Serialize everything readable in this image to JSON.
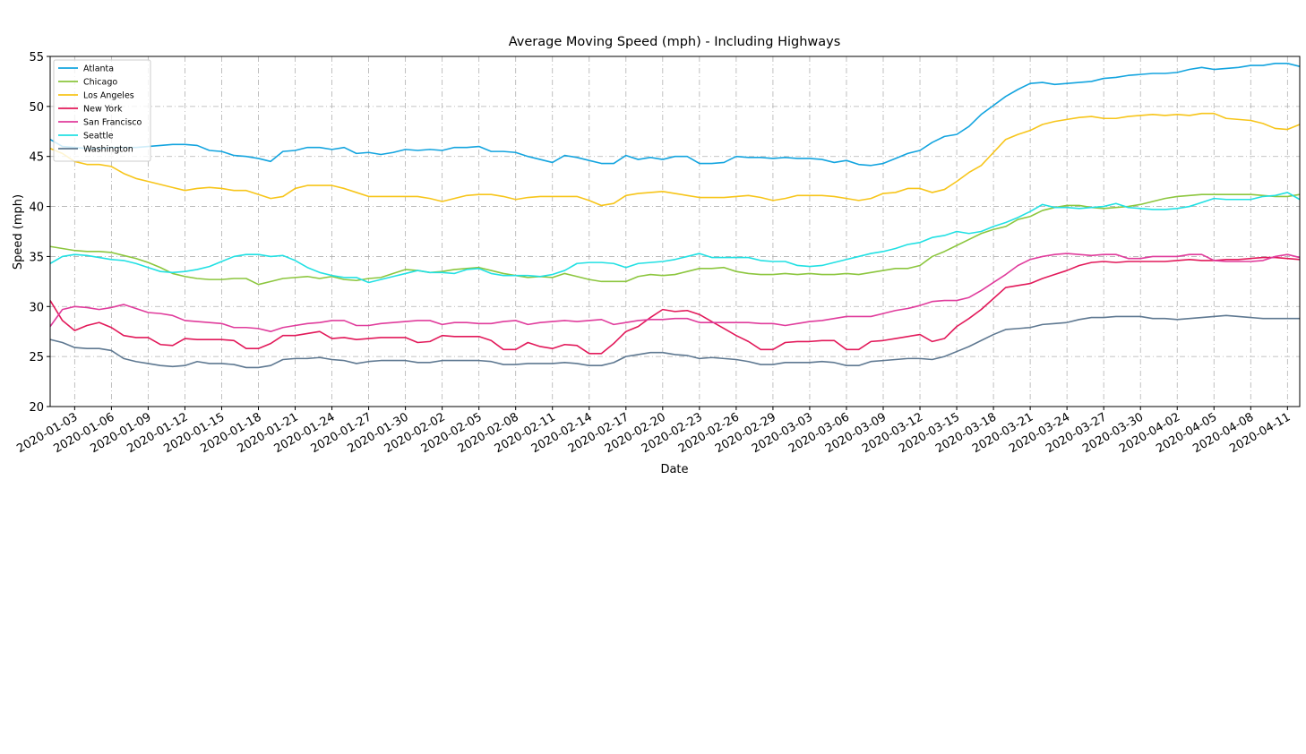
{
  "chart_data": {
    "type": "line",
    "title": "Average Moving Speed (mph) - Including Highways",
    "x_label": "Date",
    "y_label": "Speed (mph)",
    "x": [
      "2020-01-01",
      "2020-01-02",
      "2020-01-03",
      "2020-01-04",
      "2020-01-05",
      "2020-01-06",
      "2020-01-07",
      "2020-01-08",
      "2020-01-09",
      "2020-01-10",
      "2020-01-11",
      "2020-01-12",
      "2020-01-13",
      "2020-01-14",
      "2020-01-15",
      "2020-01-16",
      "2020-01-17",
      "2020-01-18",
      "2020-01-19",
      "2020-01-20",
      "2020-01-21",
      "2020-01-22",
      "2020-01-23",
      "2020-01-24",
      "2020-01-25",
      "2020-01-26",
      "2020-01-27",
      "2020-01-28",
      "2020-01-29",
      "2020-01-30",
      "2020-01-31",
      "2020-02-01",
      "2020-02-02",
      "2020-02-03",
      "2020-02-04",
      "2020-02-05",
      "2020-02-06",
      "2020-02-07",
      "2020-02-08",
      "2020-02-09",
      "2020-02-10",
      "2020-02-11",
      "2020-02-12",
      "2020-02-13",
      "2020-02-14",
      "2020-02-15",
      "2020-02-16",
      "2020-02-17",
      "2020-02-18",
      "2020-02-19",
      "2020-02-20",
      "2020-02-21",
      "2020-02-22",
      "2020-02-23",
      "2020-02-24",
      "2020-02-25",
      "2020-02-26",
      "2020-02-27",
      "2020-02-28",
      "2020-02-29",
      "2020-03-01",
      "2020-03-02",
      "2020-03-03",
      "2020-03-04",
      "2020-03-05",
      "2020-03-06",
      "2020-03-07",
      "2020-03-08",
      "2020-03-09",
      "2020-03-10",
      "2020-03-11",
      "2020-03-12",
      "2020-03-13",
      "2020-03-14",
      "2020-03-15",
      "2020-03-16",
      "2020-03-17",
      "2020-03-18",
      "2020-03-19",
      "2020-03-20",
      "2020-03-21",
      "2020-03-22",
      "2020-03-23",
      "2020-03-24",
      "2020-03-25",
      "2020-03-26",
      "2020-03-27",
      "2020-03-28",
      "2020-03-29",
      "2020-03-30",
      "2020-03-31",
      "2020-04-01",
      "2020-04-02",
      "2020-04-03",
      "2020-04-04",
      "2020-04-05",
      "2020-04-06",
      "2020-04-07",
      "2020-04-08",
      "2020-04-09",
      "2020-04-10",
      "2020-04-11",
      "2020-04-12"
    ],
    "xlim": [
      "2020-01-01",
      "2020-04-12"
    ],
    "xticks": [
      "2020-01-03",
      "2020-01-06",
      "2020-01-09",
      "2020-01-12",
      "2020-01-15",
      "2020-01-18",
      "2020-01-21",
      "2020-01-24",
      "2020-01-27",
      "2020-01-30",
      "2020-02-02",
      "2020-02-05",
      "2020-02-08",
      "2020-02-11",
      "2020-02-14",
      "2020-02-17",
      "2020-02-20",
      "2020-02-23",
      "2020-02-26",
      "2020-02-29",
      "2020-03-03",
      "2020-03-06",
      "2020-03-09",
      "2020-03-12",
      "2020-03-15",
      "2020-03-18",
      "2020-03-21",
      "2020-03-24",
      "2020-03-27",
      "2020-03-30",
      "2020-04-02",
      "2020-04-05",
      "2020-04-08",
      "2020-04-11"
    ],
    "ylim": [
      20,
      55
    ],
    "yticks": [
      20,
      25,
      30,
      35,
      40,
      45,
      50,
      55
    ],
    "grid": true,
    "legend": "upper-left",
    "series": [
      {
        "name": "Atlanta",
        "color": "#13a4df",
        "values": [
          46.7,
          46.0,
          45.9,
          45.8,
          45.8,
          45.9,
          45.9,
          45.9,
          46.0,
          46.1,
          46.2,
          46.2,
          46.1,
          45.6,
          45.5,
          45.1,
          45.0,
          44.8,
          44.5,
          45.5,
          45.6,
          45.9,
          45.9,
          45.7,
          45.9,
          45.3,
          45.4,
          45.2,
          45.4,
          45.7,
          45.6,
          45.7,
          45.6,
          45.9,
          45.9,
          46.0,
          45.5,
          45.5,
          45.4,
          45.0,
          44.7,
          44.4,
          45.1,
          44.9,
          44.6,
          44.3,
          44.3,
          45.1,
          44.7,
          44.9,
          44.7,
          45.0,
          45.0,
          44.3,
          44.3,
          44.4,
          45.0,
          44.9,
          44.9,
          44.8,
          44.9,
          44.8,
          44.8,
          44.7,
          44.4,
          44.6,
          44.2,
          44.1,
          44.3,
          44.8,
          45.3,
          45.6,
          46.4,
          47.0,
          47.2,
          48.0,
          49.2,
          50.1,
          51.0,
          51.7,
          52.3,
          52.4,
          52.2,
          52.3,
          52.4,
          52.5,
          52.8,
          52.9,
          53.1,
          53.2,
          53.3,
          53.3,
          53.4,
          53.7,
          53.9,
          53.7,
          53.8,
          53.9,
          54.1,
          54.1,
          54.3,
          54.3,
          54.0
        ]
      },
      {
        "name": "Chicago",
        "color": "#8cc63e",
        "values": [
          36.0,
          35.8,
          35.6,
          35.5,
          35.5,
          35.4,
          35.1,
          34.8,
          34.4,
          33.9,
          33.3,
          33.0,
          32.8,
          32.7,
          32.7,
          32.8,
          32.8,
          32.2,
          32.5,
          32.8,
          32.9,
          33.0,
          32.8,
          33.0,
          32.7,
          32.6,
          32.8,
          32.9,
          33.3,
          33.7,
          33.6,
          33.4,
          33.5,
          33.7,
          33.8,
          33.9,
          33.6,
          33.3,
          33.1,
          32.9,
          33.0,
          32.9,
          33.3,
          33.0,
          32.7,
          32.5,
          32.5,
          32.5,
          33.0,
          33.2,
          33.1,
          33.2,
          33.5,
          33.8,
          33.8,
          33.9,
          33.5,
          33.3,
          33.2,
          33.2,
          33.3,
          33.2,
          33.3,
          33.2,
          33.2,
          33.3,
          33.2,
          33.4,
          33.6,
          33.8,
          33.8,
          34.1,
          35.0,
          35.5,
          36.1,
          36.7,
          37.3,
          37.7,
          38.0,
          38.7,
          39.0,
          39.6,
          39.9,
          40.1,
          40.1,
          39.9,
          39.8,
          39.9,
          40.0,
          40.2,
          40.5,
          40.8,
          41.0,
          41.1,
          41.2,
          41.2,
          41.2,
          41.2,
          41.2,
          41.1,
          41.0,
          41.0,
          41.2
        ]
      },
      {
        "name": "Los Angeles",
        "color": "#f7c51a",
        "values": [
          45.8,
          45.3,
          44.5,
          44.2,
          44.2,
          44.0,
          43.3,
          42.8,
          42.5,
          42.2,
          41.9,
          41.6,
          41.8,
          41.9,
          41.8,
          41.6,
          41.6,
          41.2,
          40.8,
          41.0,
          41.8,
          42.1,
          42.1,
          42.1,
          41.8,
          41.4,
          41.0,
          41.0,
          41.0,
          41.0,
          41.0,
          40.8,
          40.5,
          40.8,
          41.1,
          41.2,
          41.2,
          41.0,
          40.7,
          40.9,
          41.0,
          41.0,
          41.0,
          41.0,
          40.6,
          40.1,
          40.3,
          41.1,
          41.3,
          41.4,
          41.5,
          41.3,
          41.1,
          40.9,
          40.9,
          40.9,
          41.0,
          41.1,
          40.9,
          40.6,
          40.8,
          41.1,
          41.1,
          41.1,
          41.0,
          40.8,
          40.6,
          40.8,
          41.3,
          41.4,
          41.8,
          41.8,
          41.4,
          41.7,
          42.5,
          43.4,
          44.1,
          45.4,
          46.7,
          47.2,
          47.6,
          48.2,
          48.5,
          48.7,
          48.9,
          49.0,
          48.8,
          48.8,
          49.0,
          49.1,
          49.2,
          49.1,
          49.2,
          49.1,
          49.3,
          49.3,
          48.8,
          48.7,
          48.6,
          48.3,
          47.8,
          47.7,
          48.2
        ]
      },
      {
        "name": "New York",
        "color": "#e2195a",
        "values": [
          30.6,
          28.6,
          27.6,
          28.1,
          28.4,
          27.9,
          27.1,
          26.9,
          26.9,
          26.2,
          26.1,
          26.8,
          26.7,
          26.7,
          26.7,
          26.6,
          25.8,
          25.8,
          26.3,
          27.1,
          27.1,
          27.3,
          27.5,
          26.8,
          26.9,
          26.7,
          26.8,
          26.9,
          26.9,
          26.9,
          26.4,
          26.5,
          27.1,
          27.0,
          27.0,
          27.0,
          26.6,
          25.7,
          25.7,
          26.4,
          26.0,
          25.8,
          26.2,
          26.1,
          25.3,
          25.3,
          26.3,
          27.5,
          28.0,
          28.9,
          29.7,
          29.5,
          29.6,
          29.2,
          28.5,
          27.8,
          27.1,
          26.5,
          25.7,
          25.7,
          26.4,
          26.5,
          26.5,
          26.6,
          26.6,
          25.7,
          25.7,
          26.5,
          26.6,
          26.8,
          27.0,
          27.2,
          26.5,
          26.8,
          28.0,
          28.8,
          29.7,
          30.8,
          31.9,
          32.1,
          32.3,
          32.8,
          33.2,
          33.6,
          34.1,
          34.4,
          34.5,
          34.4,
          34.5,
          34.5,
          34.5,
          34.5,
          34.6,
          34.7,
          34.6,
          34.6,
          34.7,
          34.7,
          34.8,
          34.9,
          34.9,
          34.8,
          34.7
        ]
      },
      {
        "name": "San Francisco",
        "color": "#e03c9c",
        "values": [
          28.0,
          29.7,
          30.0,
          29.9,
          29.7,
          29.9,
          30.2,
          29.8,
          29.4,
          29.3,
          29.1,
          28.6,
          28.5,
          28.4,
          28.3,
          27.9,
          27.9,
          27.8,
          27.5,
          27.9,
          28.1,
          28.3,
          28.4,
          28.6,
          28.6,
          28.1,
          28.1,
          28.3,
          28.4,
          28.5,
          28.6,
          28.6,
          28.2,
          28.4,
          28.4,
          28.3,
          28.3,
          28.5,
          28.6,
          28.2,
          28.4,
          28.5,
          28.6,
          28.5,
          28.6,
          28.7,
          28.2,
          28.4,
          28.6,
          28.7,
          28.7,
          28.8,
          28.8,
          28.4,
          28.4,
          28.4,
          28.4,
          28.4,
          28.3,
          28.3,
          28.1,
          28.3,
          28.5,
          28.6,
          28.8,
          29.0,
          29.0,
          29.0,
          29.3,
          29.6,
          29.8,
          30.1,
          30.5,
          30.6,
          30.6,
          30.9,
          31.6,
          32.4,
          33.2,
          34.1,
          34.7,
          35.0,
          35.2,
          35.3,
          35.2,
          35.1,
          35.2,
          35.2,
          34.8,
          34.8,
          35.0,
          35.0,
          35.0,
          35.2,
          35.2,
          34.6,
          34.5,
          34.5,
          34.5,
          34.6,
          35.0,
          35.2,
          34.9
        ]
      },
      {
        "name": "Seattle",
        "color": "#22e0e3",
        "values": [
          34.3,
          35.0,
          35.2,
          35.1,
          34.9,
          34.7,
          34.6,
          34.3,
          33.9,
          33.5,
          33.4,
          33.5,
          33.7,
          34.0,
          34.5,
          35.0,
          35.2,
          35.2,
          35.0,
          35.1,
          34.6,
          33.9,
          33.4,
          33.1,
          32.9,
          32.9,
          32.4,
          32.7,
          33.0,
          33.3,
          33.6,
          33.4,
          33.4,
          33.3,
          33.7,
          33.8,
          33.3,
          33.1,
          33.1,
          33.1,
          33.0,
          33.2,
          33.6,
          34.3,
          34.4,
          34.4,
          34.3,
          33.9,
          34.3,
          34.4,
          34.5,
          34.7,
          35.0,
          35.3,
          34.9,
          34.9,
          34.9,
          34.9,
          34.6,
          34.5,
          34.5,
          34.1,
          34.0,
          34.1,
          34.4,
          34.7,
          35.0,
          35.3,
          35.5,
          35.8,
          36.2,
          36.4,
          36.9,
          37.1,
          37.5,
          37.3,
          37.5,
          38.0,
          38.4,
          38.9,
          39.5,
          40.2,
          39.9,
          39.9,
          39.8,
          39.9,
          40.0,
          40.3,
          39.9,
          39.8,
          39.7,
          39.7,
          39.8,
          40.0,
          40.4,
          40.8,
          40.7,
          40.7,
          40.7,
          41.0,
          41.1,
          41.4,
          40.7
        ]
      },
      {
        "name": "Washington",
        "color": "#5e7891",
        "values": [
          26.7,
          26.4,
          25.9,
          25.8,
          25.8,
          25.6,
          24.8,
          24.5,
          24.3,
          24.1,
          24.0,
          24.1,
          24.5,
          24.3,
          24.3,
          24.2,
          23.9,
          23.9,
          24.1,
          24.7,
          24.8,
          24.8,
          24.9,
          24.7,
          24.6,
          24.3,
          24.5,
          24.6,
          24.6,
          24.6,
          24.4,
          24.4,
          24.6,
          24.6,
          24.6,
          24.6,
          24.5,
          24.2,
          24.2,
          24.3,
          24.3,
          24.3,
          24.4,
          24.3,
          24.1,
          24.1,
          24.4,
          25.0,
          25.2,
          25.4,
          25.4,
          25.2,
          25.1,
          24.8,
          24.9,
          24.8,
          24.7,
          24.5,
          24.2,
          24.2,
          24.4,
          24.4,
          24.4,
          24.5,
          24.4,
          24.1,
          24.1,
          24.5,
          24.6,
          24.7,
          24.8,
          24.8,
          24.7,
          25.0,
          25.5,
          26.0,
          26.6,
          27.2,
          27.7,
          27.8,
          27.9,
          28.2,
          28.3,
          28.4,
          28.7,
          28.9,
          28.9,
          29.0,
          29.0,
          29.0,
          28.8,
          28.8,
          28.7,
          28.8,
          28.9,
          29.0,
          29.1,
          29.0,
          28.9,
          28.8,
          28.8,
          28.8,
          28.8
        ]
      }
    ]
  }
}
